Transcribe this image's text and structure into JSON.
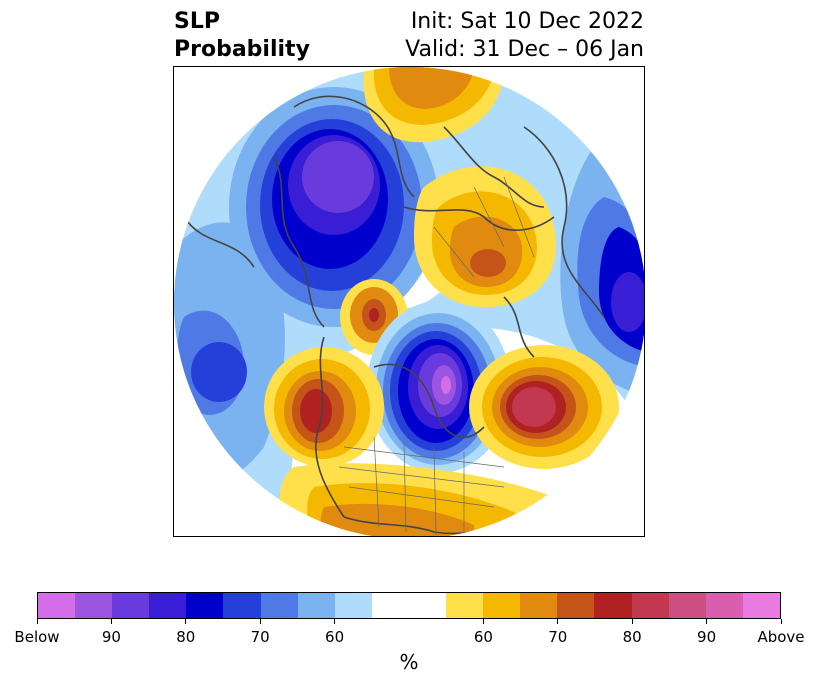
{
  "title": {
    "left_line1": "SLP",
    "left_line2": "Probability",
    "right_line1": "Init: Sat 10 Dec 2022",
    "right_line2": "Valid: 31 Dec – 06 Jan"
  },
  "colorbar": {
    "colors": [
      "#d36ee8",
      "#9b55e0",
      "#6a3bdc",
      "#3a1ed6",
      "#0000cc",
      "#2540d8",
      "#4f7ae6",
      "#7bb2f0",
      "#aedcfa",
      "#ffffff",
      "#ffffff",
      "#ffe04a",
      "#f5b800",
      "#e08a10",
      "#c45418",
      "#b02222",
      "#c23850",
      "#cc4f82",
      "#d95fae",
      "#e87ae0"
    ],
    "labels": [
      "Below",
      "90",
      "80",
      "70",
      "60",
      "60",
      "70",
      "80",
      "90",
      "Above"
    ],
    "unit": "%"
  },
  "map": {
    "projection": "north-polar-stereographic",
    "below_color_scale": "purple-blue",
    "above_color_scale": "yellow-red-magenta"
  }
}
